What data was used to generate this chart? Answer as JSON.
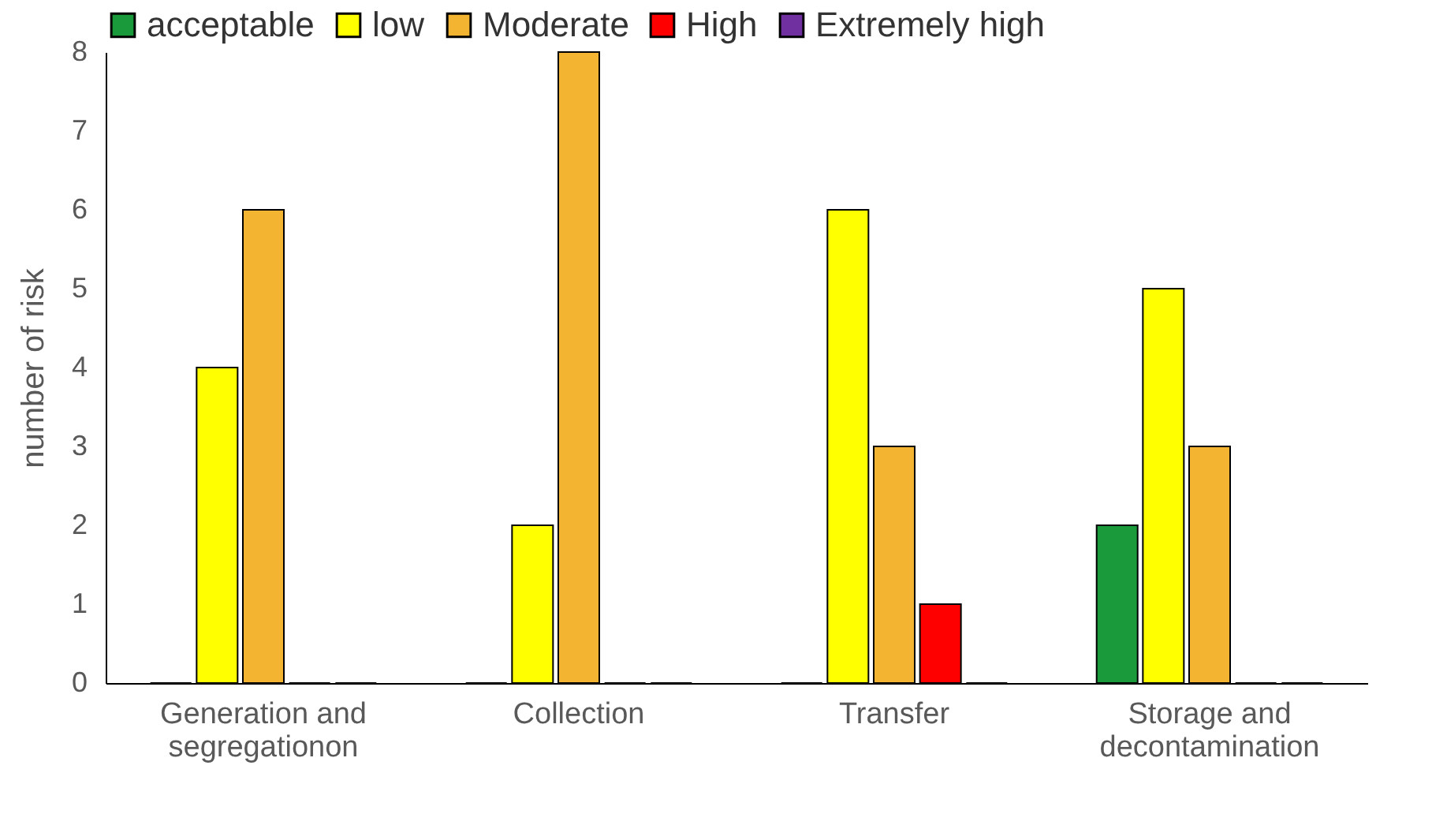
{
  "chart_data": {
    "type": "bar",
    "ylabel": "number of risk",
    "categories": [
      "Generation and segregationon",
      "Collection",
      "Transfer",
      "Storage and decontamination"
    ],
    "series": [
      {
        "name": "acceptable",
        "color": "#1a9a3a",
        "values": [
          0,
          0,
          0,
          2
        ]
      },
      {
        "name": "low",
        "color": "#ffff00",
        "values": [
          4,
          2,
          6,
          5
        ]
      },
      {
        "name": "Moderate",
        "color": "#f2b431",
        "values": [
          6,
          8,
          3,
          3
        ]
      },
      {
        "name": "High",
        "color": "#ff0000",
        "values": [
          0,
          0,
          1,
          0
        ]
      },
      {
        "name": "Extremely high",
        "color": "#7030a0",
        "values": [
          0,
          0,
          0,
          0
        ]
      }
    ],
    "ylim": [
      0,
      8
    ],
    "yticks": [
      0,
      1,
      2,
      3,
      4,
      5,
      6,
      7,
      8
    ],
    "grid": false,
    "legend": "top"
  }
}
